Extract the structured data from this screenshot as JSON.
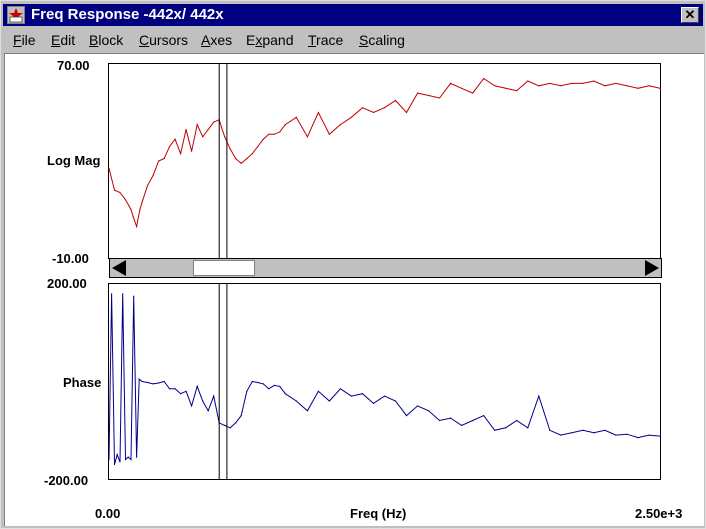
{
  "window": {
    "title": "Freq Response -442x/ 442x",
    "close_label": "✕"
  },
  "menu": [
    {
      "label": "File",
      "mn": "F"
    },
    {
      "label": "Edit",
      "mn": "E"
    },
    {
      "label": "Block",
      "mn": "B"
    },
    {
      "label": "Cursors",
      "mn": "C"
    },
    {
      "label": "Axes",
      "mn": "A"
    },
    {
      "label": "Expand",
      "mn": "x"
    },
    {
      "label": "Trace",
      "mn": "T"
    },
    {
      "label": "Scaling",
      "mn": "S"
    }
  ],
  "chart_data": [
    {
      "type": "line",
      "ylabel": "Log Mag",
      "ylim": [
        -10,
        70
      ],
      "xlim": [
        0,
        2500
      ],
      "color": "#c00000",
      "x": [
        0,
        25,
        50,
        75,
        100,
        110,
        125,
        140,
        150,
        175,
        200,
        225,
        250,
        275,
        300,
        325,
        350,
        375,
        400,
        425,
        450,
        475,
        500,
        510,
        525,
        550,
        575,
        600,
        625,
        650,
        675,
        700,
        725,
        750,
        775,
        800,
        850,
        900,
        950,
        1000,
        1050,
        1100,
        1150,
        1200,
        1250,
        1300,
        1350,
        1400,
        1450,
        1500,
        1550,
        1600,
        1650,
        1700,
        1750,
        1800,
        1850,
        1900,
        1950,
        2000,
        2050,
        2100,
        2150,
        2200,
        2250,
        2300,
        2350,
        2400,
        2450,
        2500
      ],
      "values": [
        27,
        18,
        17,
        14,
        10,
        7,
        3,
        10,
        13,
        20,
        24,
        30,
        31,
        36,
        39,
        33,
        43,
        34,
        45,
        40,
        43,
        46,
        47,
        44,
        40,
        35,
        31,
        29,
        31,
        33,
        36,
        39,
        41,
        41,
        42,
        45,
        48,
        40,
        50,
        41,
        45,
        48,
        52,
        50,
        52,
        55,
        50,
        58,
        57,
        56,
        62,
        60,
        58,
        64,
        61,
        60,
        59,
        63,
        61,
        62,
        61,
        62,
        62,
        63,
        61,
        62,
        61,
        60,
        61,
        60
      ]
    },
    {
      "type": "line",
      "ylabel": "Phase",
      "ylim": [
        -200,
        200
      ],
      "xlim": [
        0,
        2500
      ],
      "color": "#00008b",
      "x": [
        0,
        12,
        25,
        37,
        50,
        62,
        75,
        87,
        100,
        112,
        125,
        137,
        150,
        175,
        200,
        225,
        250,
        275,
        300,
        325,
        350,
        375,
        400,
        425,
        450,
        475,
        500,
        525,
        550,
        575,
        600,
        625,
        650,
        675,
        700,
        725,
        750,
        775,
        800,
        850,
        900,
        950,
        1000,
        1050,
        1100,
        1150,
        1200,
        1250,
        1300,
        1350,
        1400,
        1450,
        1500,
        1550,
        1600,
        1650,
        1700,
        1750,
        1800,
        1850,
        1900,
        1950,
        2000,
        2050,
        2100,
        2150,
        2200,
        2250,
        2300,
        2350,
        2400,
        2450,
        2500
      ],
      "values": [
        -160,
        180,
        -170,
        -150,
        -165,
        180,
        -160,
        -155,
        -160,
        175,
        -155,
        5,
        0,
        -2,
        -5,
        -3,
        0,
        -15,
        -15,
        -25,
        -20,
        -50,
        -10,
        -40,
        -60,
        -30,
        -85,
        -90,
        -95,
        -85,
        -70,
        -20,
        0,
        -2,
        -5,
        -15,
        -8,
        -10,
        -25,
        -40,
        -60,
        -20,
        -40,
        -15,
        -30,
        -25,
        -45,
        -30,
        -40,
        -70,
        -50,
        -60,
        -80,
        -75,
        -90,
        -80,
        -70,
        -100,
        -95,
        -80,
        -95,
        -30,
        -100,
        -110,
        -105,
        -100,
        -105,
        -100,
        -110,
        -108,
        -115,
        -110,
        -112
      ]
    }
  ],
  "axes": {
    "top_ymax": "70.00",
    "top_ymin": "-10.00",
    "top_ylabel": "Log Mag",
    "bottom_ymax": "200.00",
    "bottom_ymin": "-200.00",
    "bottom_ylabel": "Phase",
    "x_min_label": "0.00",
    "x_max_label": "2.50e+3",
    "xlabel": "Freq (Hz)"
  },
  "cursors": [
    500,
    535
  ],
  "scrollbar": {
    "thumb_start": 375,
    "thumb_end": 655,
    "xmax": 2500
  }
}
